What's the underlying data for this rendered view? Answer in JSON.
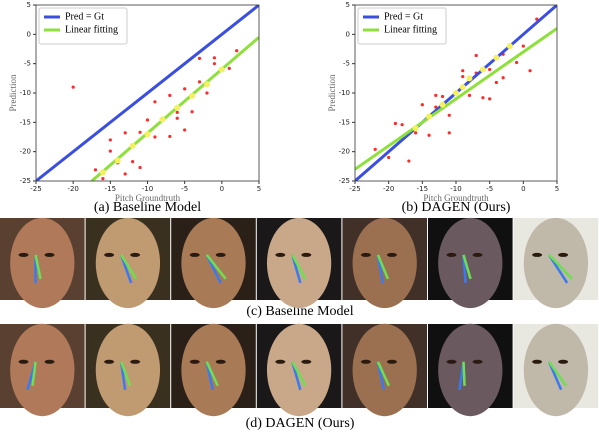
{
  "chart_data": [
    {
      "type": "scatter",
      "caption": "(a) Baseline Model",
      "xlabel": "Pitch Groundtruth",
      "ylabel": "Prediction",
      "xlim": [
        -25,
        5
      ],
      "ylim": [
        -25,
        5
      ],
      "xticks": [
        -25,
        -20,
        -15,
        -10,
        -5,
        0,
        5
      ],
      "yticks": [
        -25,
        -20,
        -15,
        -10,
        -5,
        0,
        5
      ],
      "legend": "upper left",
      "series": [
        {
          "type": "scatter",
          "color": "#ff2a2a",
          "x": [
            -17,
            -16,
            -15,
            -14,
            -13,
            -12,
            -11,
            -10,
            -9,
            -8,
            -7,
            -6,
            -5,
            -4,
            -3,
            -2,
            -1,
            0,
            1,
            2,
            -13,
            -9,
            -5,
            -1,
            -15,
            -7,
            -11,
            -3,
            -20,
            -6
          ],
          "values": [
            -23.1,
            -24.6,
            -19.9,
            -21.9,
            -16.8,
            -21.7,
            -16.7,
            -14.6,
            -17.5,
            -14.5,
            -10.4,
            -13.3,
            -9.3,
            -13.2,
            -8.1,
            -10,
            -5,
            -5.9,
            -5.8,
            -2.8,
            -23.8,
            -11.5,
            -16.3,
            -4,
            -18,
            -17.4,
            -22.7,
            -4.1,
            -9,
            -14.3
          ]
        },
        {
          "name": "Pred = Gt",
          "type": "line",
          "color": "#3a4fe0",
          "x": [
            -25,
            5
          ],
          "values": [
            -25,
            5
          ]
        },
        {
          "name": "Linear fitting",
          "type": "line",
          "color": "#8ee03a",
          "x": [
            -17.5,
            5
          ],
          "values": [
            -25,
            -0.5
          ]
        },
        {
          "type": "scatter",
          "color": "#f4f060",
          "x": [
            -16,
            -14,
            -12,
            -10,
            -8,
            -6,
            -4,
            -2,
            0
          ],
          "values": [
            -23.5,
            -21.5,
            -19,
            -17,
            -14.5,
            -12.5,
            -10.5,
            -8.5,
            -6
          ]
        }
      ]
    },
    {
      "type": "scatter",
      "caption": "(b) DAGEN (Ours)",
      "xlabel": "Pitch Groundtruth",
      "ylabel": "Prediction",
      "xlim": [
        -25,
        5
      ],
      "ylim": [
        -25,
        5
      ],
      "xticks": [
        -25,
        -20,
        -15,
        -10,
        -5,
        0,
        5
      ],
      "yticks": [
        -25,
        -20,
        -15,
        -10,
        -5,
        0,
        5
      ],
      "legend": "upper left",
      "series": [
        {
          "type": "scatter",
          "color": "#ff2a2a",
          "x": [
            -22,
            -20,
            -18,
            -16,
            -15,
            -14,
            -13,
            -12,
            -11,
            -10,
            -9,
            -8,
            -7,
            -6,
            -5,
            -4,
            -3,
            -2,
            -1,
            0,
            1,
            2,
            -17,
            -13,
            -9,
            -5,
            -11,
            -7,
            -19,
            -3
          ],
          "values": [
            -19.6,
            -21,
            -15.4,
            -16.8,
            -12,
            -17.2,
            -12.4,
            -10.6,
            -13.8,
            -11,
            -7.2,
            -10.4,
            -6.6,
            -10.8,
            -6,
            -8.2,
            -3.4,
            -4.6,
            -4.8,
            -2,
            -6.2,
            2.6,
            -21.6,
            -10.4,
            -6.2,
            -11,
            -16.8,
            -3.6,
            -15.2,
            -7.4
          ]
        },
        {
          "name": "Pred = Gt",
          "type": "line",
          "color": "#3a4fe0",
          "x": [
            -25,
            5
          ],
          "values": [
            -25,
            5
          ]
        },
        {
          "name": "Linear fitting",
          "type": "line",
          "color": "#8ee03a",
          "x": [
            -25,
            5
          ],
          "values": [
            -23,
            1
          ]
        },
        {
          "type": "scatter",
          "color": "#f4f060",
          "x": [
            -16,
            -14,
            -12,
            -10,
            -9,
            -8,
            -6,
            -4,
            -2
          ],
          "values": [
            -16,
            -14,
            -12,
            -10,
            -9,
            -7.5,
            -6,
            -4,
            -2
          ]
        }
      ]
    }
  ],
  "image_rows": [
    {
      "caption": "(c) Baseline Model"
    },
    {
      "caption": "(d) DAGEN (Ours)"
    }
  ]
}
